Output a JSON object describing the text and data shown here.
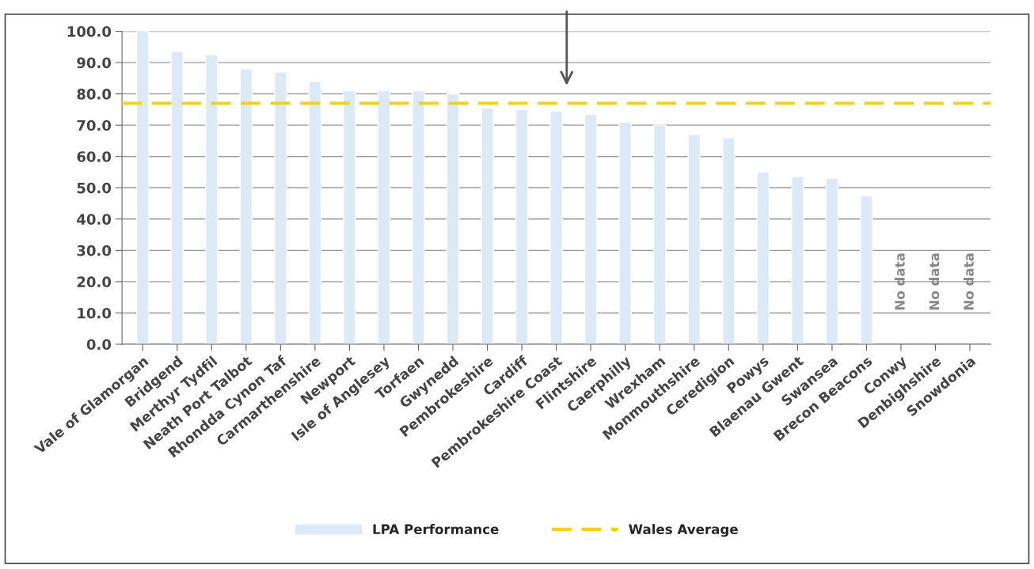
{
  "chart_data": {
    "type": "bar",
    "categories": [
      "Vale of Glamorgan",
      "Bridgend",
      "Merthyr Tydfil",
      "Neath Port Talbot",
      "Rhondda Cynon Taf",
      "Carmarthenshire",
      "Newport",
      "Isle of Anglesey",
      "Torfaen",
      "Gwynedd",
      "Pembrokeshire",
      "Cardiff",
      "Pembrokeshire Coast",
      "Flintshire",
      "Caerphilly",
      "Wrexham",
      "Monmouthshire",
      "Ceredigion",
      "Powys",
      "Blaenau Gwent",
      "Swansea",
      "Brecon Beacons",
      "Conwy",
      "Denbighshire",
      "Snowdonia"
    ],
    "series": [
      {
        "name": "LPA Performance",
        "color": "#dce9f7",
        "values": [
          100,
          93.5,
          92.5,
          88,
          87,
          84,
          81,
          81,
          81,
          80,
          75.5,
          75,
          74.5,
          73.5,
          71,
          70,
          67,
          66,
          55,
          53.5,
          53,
          47.5,
          null,
          null,
          null
        ]
      }
    ],
    "ref_lines": [
      {
        "axis": "y",
        "value": 77,
        "label": "Wales Average",
        "color": "#f5d020",
        "line_style": "dashed"
      }
    ],
    "annotations": [
      "No data",
      "No data",
      "No data"
    ],
    "ylim": [
      0,
      100
    ],
    "yticks": [
      {
        "value": 0,
        "label": "0.0"
      },
      {
        "value": 10,
        "label": "10.0"
      },
      {
        "value": 20,
        "label": "20.0"
      },
      {
        "value": 30,
        "label": "30.0"
      },
      {
        "value": 40,
        "label": "40.0"
      },
      {
        "value": 50,
        "label": "50.0"
      },
      {
        "value": 60,
        "label": "60.0"
      },
      {
        "value": 70,
        "label": "70.0"
      },
      {
        "value": 80,
        "label": "80.0"
      },
      {
        "value": 90,
        "label": "90.0"
      },
      {
        "value": 100,
        "label": "100.0"
      }
    ],
    "grid": "y",
    "legend": "bottom"
  }
}
